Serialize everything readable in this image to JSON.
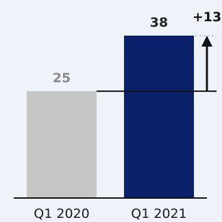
{
  "chart_data": {
    "type": "bar",
    "categories": [
      "Q1 2020",
      "Q1 2021"
    ],
    "values": [
      25,
      38
    ],
    "data_labels": [
      "25",
      "38"
    ],
    "colors": [
      "#c6c6c6",
      "#0a1f6a"
    ],
    "label_colors": [
      "#8b8b8b",
      "#222222"
    ],
    "ylim": [
      0,
      38
    ],
    "delta_label": "+13",
    "delta_value": 13,
    "axis_color": "#111111",
    "grid": false,
    "legend": "none"
  }
}
